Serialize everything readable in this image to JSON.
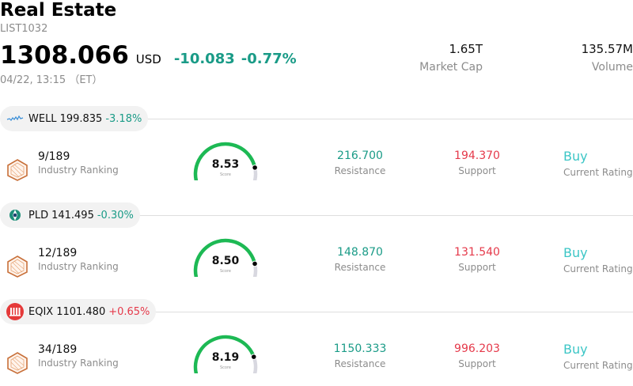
{
  "header": {
    "title": "Real Estate",
    "code": "LIST1032",
    "price": "1308.066",
    "currency": "USD",
    "change": "-10.083",
    "change_pct": "-0.77%",
    "timestamp": "04/22, 13:15 （ET）",
    "market_cap_value": "1.65T",
    "market_cap_label": "Market Cap",
    "volume_value": "135.57M",
    "volume_label": "Volume"
  },
  "stocks": [
    {
      "ticker": "WELL",
      "price": "199.835",
      "change_pct": "-3.18%",
      "direction": "down",
      "logo": "welltower-logo",
      "rank": "9/189",
      "rank_label": "Industry Ranking",
      "score": "8.53",
      "score_level": 0.853,
      "score_caption": "Score",
      "resistance": "216.700",
      "resistance_label": "Resistance",
      "support": "194.370",
      "support_label": "Support",
      "rating": "Buy",
      "rating_label": "Current Rating"
    },
    {
      "ticker": "PLD",
      "price": "141.495",
      "change_pct": "-0.30%",
      "direction": "down",
      "logo": "prologis-logo",
      "rank": "12/189",
      "rank_label": "Industry Ranking",
      "score": "8.50",
      "score_level": 0.85,
      "score_caption": "Score",
      "resistance": "148.870",
      "resistance_label": "Resistance",
      "support": "131.540",
      "support_label": "Support",
      "rating": "Buy",
      "rating_label": "Current Rating"
    },
    {
      "ticker": "EQIX",
      "price": "1101.480",
      "change_pct": "+0.65%",
      "direction": "up",
      "logo": "equinix-logo",
      "rank": "34/189",
      "rank_label": "Industry Ranking",
      "score": "8.19",
      "score_level": 0.819,
      "score_caption": "Score",
      "resistance": "1150.333",
      "resistance_label": "Resistance",
      "support": "996.203",
      "support_label": "Support",
      "rating": "Buy",
      "rating_label": "Current Rating"
    }
  ],
  "colors": {
    "up": "#e5394a",
    "down": "#1a9b87",
    "gauge_fill": "#1db954",
    "gauge_track": "#d8d8e0",
    "rating": "#3cc6c6",
    "rank_icon": "#c8703a"
  }
}
